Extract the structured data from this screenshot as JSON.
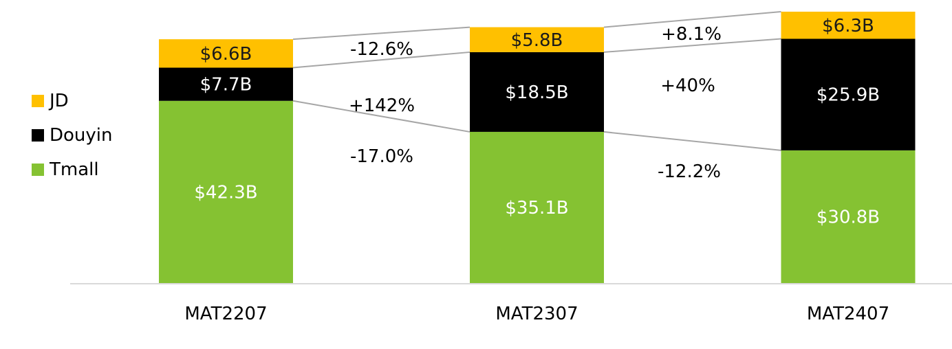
{
  "chart_data": {
    "type": "bar",
    "stacked": true,
    "categories": [
      "MAT2207",
      "MAT2307",
      "MAT2407"
    ],
    "series": [
      {
        "name": "Tmall",
        "color": "#85c232",
        "values": [
          42.3,
          35.1,
          30.8
        ],
        "labels": [
          "$42.3B",
          "$35.1B",
          "$30.8B"
        ],
        "label_color": "#ffffff"
      },
      {
        "name": "Douyin",
        "color": "#000000",
        "values": [
          7.7,
          18.5,
          25.9
        ],
        "labels": [
          "$7.7B",
          "$18.5B",
          "$25.9B"
        ],
        "label_color": "#ffffff"
      },
      {
        "name": "JD",
        "color": "#ffc000",
        "values": [
          6.6,
          5.8,
          6.3
        ],
        "labels": [
          "$6.6B",
          "$5.8B",
          "$6.3B"
        ],
        "label_color": "#1a1a1a"
      }
    ],
    "growth": [
      {
        "series": "JD",
        "values": [
          "-12.6%",
          "+8.1%"
        ]
      },
      {
        "series": "Douyin",
        "values": [
          "+142%",
          "+40%"
        ]
      },
      {
        "series": "Tmall",
        "values": [
          "-17.0%",
          "-12.2%"
        ]
      }
    ],
    "legend_position": "left",
    "legend_order": [
      "JD",
      "Douyin",
      "Tmall"
    ],
    "ylim": [
      0,
      63
    ],
    "grid": false,
    "connector_color": "#a6a6a6",
    "axis_color": "#d9d9d9"
  }
}
